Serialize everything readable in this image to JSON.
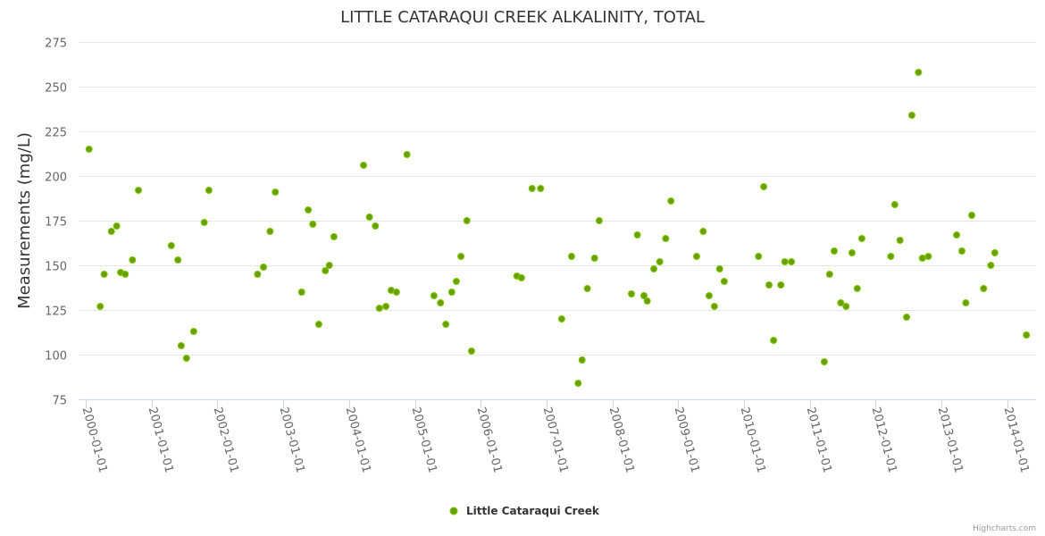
{
  "chart_data": {
    "type": "scatter",
    "title": "LITTLE CATARAQUI CREEK ALKALINITY, TOTAL",
    "xlabel": "",
    "ylabel": "Measurements (mg/L)",
    "ylim": [
      75,
      275
    ],
    "yticks": [
      75,
      100,
      125,
      150,
      175,
      200,
      225,
      250,
      275
    ],
    "xlim": [
      1999.89,
      2014.44
    ],
    "xticks": [
      2000,
      2001,
      2002,
      2003,
      2004,
      2005,
      2006,
      2007,
      2008,
      2009,
      2010,
      2011,
      2012,
      2013,
      2014
    ],
    "xtick_labels": [
      "2000-01-01",
      "2001-01-01",
      "2002-01-01",
      "2003-01-01",
      "2004-01-01",
      "2005-01-01",
      "2006-01-01",
      "2007-01-01",
      "2008-01-01",
      "2009-01-01",
      "2010-01-01",
      "2011-01-01",
      "2012-01-01",
      "2013-01-01",
      "2014-01-01"
    ],
    "grid": true,
    "legend": "bottom-center",
    "series": [
      {
        "name": "Little Cataraqui Creek",
        "color": "#6b9f00",
        "x": [
          2000.05,
          2000.22,
          2000.28,
          2000.39,
          2000.47,
          2000.53,
          2000.6,
          2000.71,
          2000.8,
          2001.3,
          2001.4,
          2001.45,
          2001.53,
          2001.64,
          2001.8,
          2001.87,
          2002.61,
          2002.7,
          2002.8,
          2002.88,
          2003.28,
          2003.38,
          2003.45,
          2003.54,
          2003.64,
          2003.7,
          2003.77,
          2004.22,
          2004.31,
          2004.4,
          2004.46,
          2004.56,
          2004.64,
          2004.72,
          2004.88,
          2005.29,
          2005.39,
          2005.47,
          2005.56,
          2005.63,
          2005.7,
          2005.79,
          2005.86,
          2006.55,
          2006.62,
          2006.78,
          2006.91,
          2007.23,
          2007.38,
          2007.48,
          2007.54,
          2007.62,
          2007.73,
          2007.8,
          2008.29,
          2008.38,
          2008.48,
          2008.53,
          2008.63,
          2008.72,
          2008.81,
          2008.89,
          2009.28,
          2009.38,
          2009.47,
          2009.55,
          2009.63,
          2009.7,
          2010.22,
          2010.3,
          2010.38,
          2010.45,
          2010.56,
          2010.62,
          2010.72,
          2011.22,
          2011.3,
          2011.37,
          2011.47,
          2011.55,
          2011.64,
          2011.72,
          2011.79,
          2012.23,
          2012.29,
          2012.37,
          2012.47,
          2012.55,
          2012.65,
          2012.71,
          2012.8,
          2013.23,
          2013.31,
          2013.37,
          2013.46,
          2013.64,
          2013.75,
          2013.81,
          2014.29
        ],
        "y": [
          215,
          127,
          145,
          169,
          172,
          146,
          145,
          153,
          192,
          161,
          153,
          105,
          98,
          113,
          174,
          192,
          145,
          149,
          169,
          191,
          135,
          181,
          173,
          117,
          147,
          150,
          166,
          206,
          177,
          172,
          126,
          127,
          136,
          135,
          212,
          133,
          129,
          117,
          135,
          141,
          155,
          175,
          102,
          144,
          143,
          193,
          193,
          120,
          155,
          84,
          97,
          137,
          154,
          175,
          134,
          167,
          133,
          130,
          148,
          152,
          165,
          186,
          155,
          169,
          133,
          127,
          148,
          141,
          155,
          194,
          139,
          108,
          139,
          152,
          152,
          96,
          145,
          158,
          129,
          127,
          157,
          137,
          165,
          155,
          184,
          164,
          121,
          234,
          258,
          154,
          155,
          167,
          158,
          129,
          178,
          137,
          150,
          157,
          111
        ]
      }
    ]
  },
  "credits": "Highcharts.com"
}
